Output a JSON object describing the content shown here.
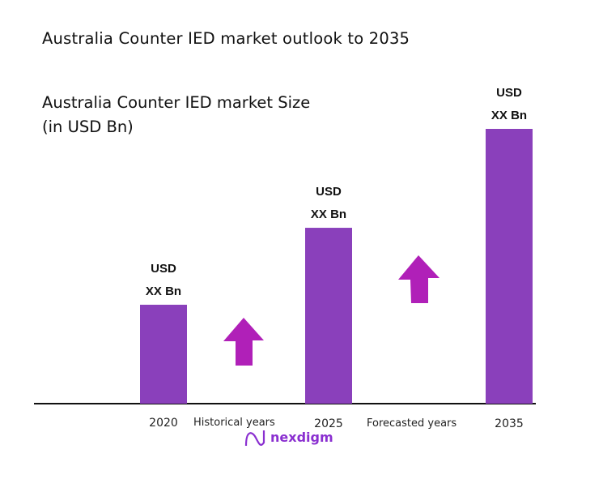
{
  "header": {
    "title": "Australia Counter IED market outlook to 2035",
    "subtitle_line1": "Australia Counter IED market Size",
    "subtitle_line2": "(in USD Bn)"
  },
  "chart_data": {
    "type": "bar",
    "title": "Australia Counter IED market Size",
    "ylabel": "(in USD Bn)",
    "categories": [
      "2020",
      "2025",
      "2035"
    ],
    "values_relative_index": [
      36,
      64,
      100
    ],
    "data_labels": [
      [
        "USD",
        "XX Bn"
      ],
      [
        "USD",
        "XX Bn"
      ],
      [
        "USD",
        "XX Bn"
      ]
    ],
    "period_labels": [
      "Historical years",
      "Forecasted years"
    ],
    "grid": false,
    "bar_color": "#8a40bb",
    "arrow_color": "#b020b8",
    "axis_color": "#111111"
  },
  "logo": {
    "text": "nexdigm",
    "color": "#8a2fd0"
  }
}
